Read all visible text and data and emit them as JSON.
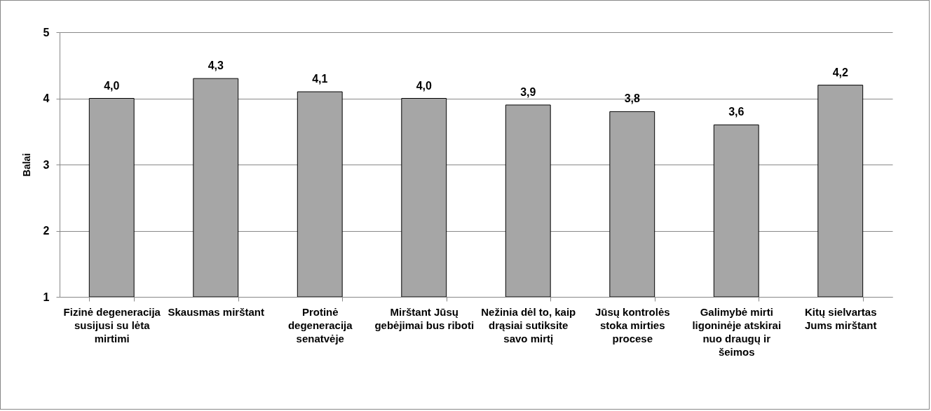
{
  "chart_data": {
    "type": "bar",
    "ylabel": "Balai",
    "categories": [
      "Fizinė degeneracija susijusi su lėta mirtimi",
      "Skausmas mirštant",
      "Protinė degeneracija senatvėje",
      "Mirštant Jūsų gebėjimai bus riboti",
      "Nežinia dėl to, kaip drąsiai sutiksite savo mirtį",
      "Jūsų kontrolės stoka mirties procese",
      "Galimybė mirti ligoninėje atskirai nuo draugų ir šeimos",
      "Kitų sielvartas Jums mirštant"
    ],
    "values": [
      4.0,
      4.3,
      4.1,
      4.0,
      3.9,
      3.8,
      3.6,
      4.2
    ],
    "value_labels": [
      "4,0",
      "4,3",
      "4,1",
      "4,0",
      "3,9",
      "3,8",
      "3,6",
      "4,2"
    ],
    "color": "#a6a6a6",
    "ylim": [
      1,
      5
    ],
    "yticks": [
      1,
      2,
      3,
      4,
      5
    ],
    "grid": "y"
  }
}
